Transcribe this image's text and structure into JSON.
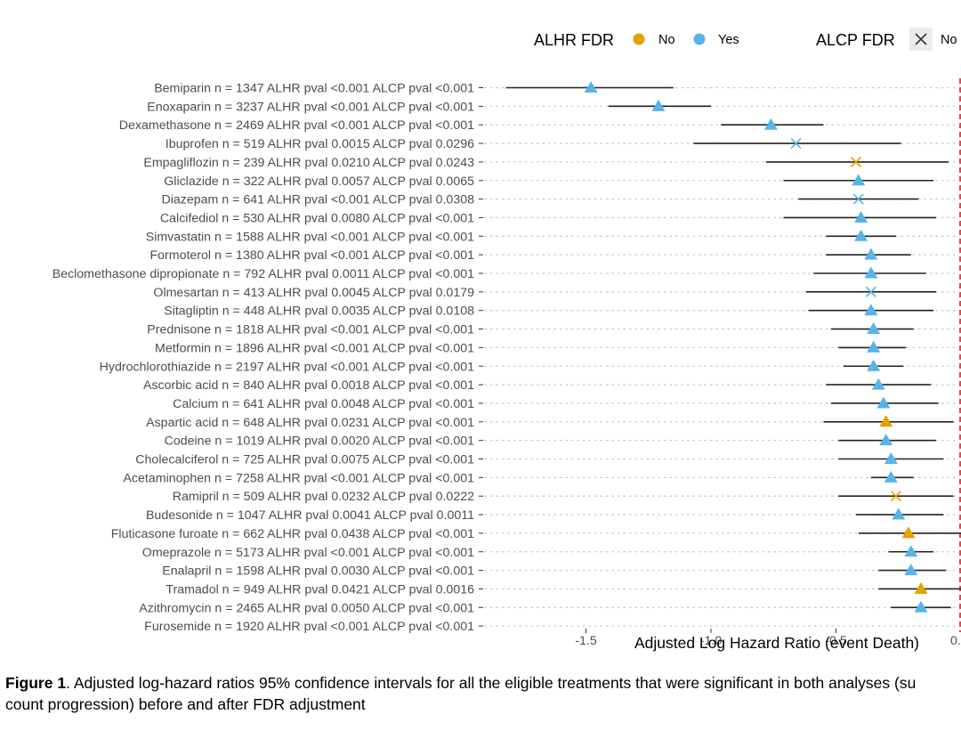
{
  "chart_data": {
    "type": "forest",
    "xlabel": "Adjusted Log Hazard Ratio (event Death)",
    "xlim": [
      -2.0,
      0.0
    ],
    "xticks": [
      -1.5,
      -1.0,
      -0.5
    ],
    "xtick_labels": [
      "-1.5",
      "-1.0",
      "-0.5"
    ],
    "xtick_cut_label": "0.",
    "reference_line": 0,
    "legend": {
      "position": "top",
      "color_title": "ALHR FDR",
      "color_entries": [
        {
          "label": "No",
          "color": "#E69F00"
        },
        {
          "label": "Yes",
          "color": "#56B4E9"
        }
      ],
      "shape_title": "ALCP FDR",
      "shape_entries": [
        {
          "label": "No",
          "shape": "cross"
        }
      ]
    },
    "rows": [
      {
        "drug": "Bemiparin",
        "n": "1347",
        "alhr_pval": "<0.001",
        "alcp_pval": "<0.001",
        "estimate": -1.48,
        "ci": [
          -1.82,
          -1.15
        ],
        "alhr_fdr": "Yes",
        "alcp_fdr": "Yes"
      },
      {
        "drug": "Enoxaparin",
        "n": "3237",
        "alhr_pval": "<0.001",
        "alcp_pval": "<0.001",
        "estimate": -1.21,
        "ci": [
          -1.41,
          -1.0
        ],
        "alhr_fdr": "Yes",
        "alcp_fdr": "Yes"
      },
      {
        "drug": "Dexamethasone",
        "n": "2469",
        "alhr_pval": "<0.001",
        "alcp_pval": "<0.001",
        "estimate": -0.76,
        "ci": [
          -0.96,
          -0.55
        ],
        "alhr_fdr": "Yes",
        "alcp_fdr": "Yes"
      },
      {
        "drug": "Ibuprofen",
        "n": "519",
        "alhr_pval": "0.0015",
        "alcp_pval": "0.0296",
        "estimate": -0.66,
        "ci": [
          -1.07,
          -0.24
        ],
        "alhr_fdr": "Yes",
        "alcp_fdr": "No"
      },
      {
        "drug": "Empagliflozin",
        "n": "239",
        "alhr_pval": "0.0210",
        "alcp_pval": "0.0243",
        "estimate": -0.42,
        "ci": [
          -0.78,
          -0.05
        ],
        "alhr_fdr": "No",
        "alcp_fdr": "No"
      },
      {
        "drug": "Gliclazide",
        "n": "322",
        "alhr_pval": "0.0057",
        "alcp_pval": "0.0065",
        "estimate": -0.41,
        "ci": [
          -0.71,
          -0.11
        ],
        "alhr_fdr": "Yes",
        "alcp_fdr": "Yes"
      },
      {
        "drug": "Diazepam",
        "n": "641",
        "alhr_pval": "<0.001",
        "alcp_pval": "0.0308",
        "estimate": -0.41,
        "ci": [
          -0.65,
          -0.17
        ],
        "alhr_fdr": "Yes",
        "alcp_fdr": "No"
      },
      {
        "drug": "Calcifediol",
        "n": "530",
        "alhr_pval": "0.0080",
        "alcp_pval": "<0.001",
        "estimate": -0.4,
        "ci": [
          -0.71,
          -0.1
        ],
        "alhr_fdr": "Yes",
        "alcp_fdr": "Yes"
      },
      {
        "drug": "Simvastatin",
        "n": "1588",
        "alhr_pval": "<0.001",
        "alcp_pval": "<0.001",
        "estimate": -0.4,
        "ci": [
          -0.54,
          -0.26
        ],
        "alhr_fdr": "Yes",
        "alcp_fdr": "Yes"
      },
      {
        "drug": "Formoterol",
        "n": "1380",
        "alhr_pval": "<0.001",
        "alcp_pval": "<0.001",
        "estimate": -0.36,
        "ci": [
          -0.54,
          -0.2
        ],
        "alhr_fdr": "Yes",
        "alcp_fdr": "Yes"
      },
      {
        "drug": "Beclomethasone dipropionate",
        "n": "792",
        "alhr_pval": "0.0011",
        "alcp_pval": "<0.001",
        "estimate": -0.36,
        "ci": [
          -0.59,
          -0.14
        ],
        "alhr_fdr": "Yes",
        "alcp_fdr": "Yes"
      },
      {
        "drug": "Olmesartan",
        "n": "413",
        "alhr_pval": "0.0045",
        "alcp_pval": "0.0179",
        "estimate": -0.36,
        "ci": [
          -0.62,
          -0.1
        ],
        "alhr_fdr": "Yes",
        "alcp_fdr": "No"
      },
      {
        "drug": "Sitagliptin",
        "n": "448",
        "alhr_pval": "0.0035",
        "alcp_pval": "0.0108",
        "estimate": -0.36,
        "ci": [
          -0.61,
          -0.11
        ],
        "alhr_fdr": "Yes",
        "alcp_fdr": "Yes"
      },
      {
        "drug": "Prednisone",
        "n": "1818",
        "alhr_pval": "<0.001",
        "alcp_pval": "<0.001",
        "estimate": -0.35,
        "ci": [
          -0.52,
          -0.19
        ],
        "alhr_fdr": "Yes",
        "alcp_fdr": "Yes"
      },
      {
        "drug": "Metformin",
        "n": "1896",
        "alhr_pval": "<0.001",
        "alcp_pval": "<0.001",
        "estimate": -0.35,
        "ci": [
          -0.49,
          -0.22
        ],
        "alhr_fdr": "Yes",
        "alcp_fdr": "Yes"
      },
      {
        "drug": "Hydrochlorothiazide",
        "n": "2197",
        "alhr_pval": "<0.001",
        "alcp_pval": "<0.001",
        "estimate": -0.35,
        "ci": [
          -0.47,
          -0.23
        ],
        "alhr_fdr": "Yes",
        "alcp_fdr": "Yes"
      },
      {
        "drug": "Ascorbic acid",
        "n": "840",
        "alhr_pval": "0.0018",
        "alcp_pval": "<0.001",
        "estimate": -0.33,
        "ci": [
          -0.54,
          -0.12
        ],
        "alhr_fdr": "Yes",
        "alcp_fdr": "Yes"
      },
      {
        "drug": "Calcium",
        "n": "641",
        "alhr_pval": "0.0048",
        "alcp_pval": "<0.001",
        "estimate": -0.31,
        "ci": [
          -0.52,
          -0.09
        ],
        "alhr_fdr": "Yes",
        "alcp_fdr": "Yes"
      },
      {
        "drug": "Aspartic acid",
        "n": "648",
        "alhr_pval": "0.0231",
        "alcp_pval": "<0.001",
        "estimate": -0.3,
        "ci": [
          -0.55,
          -0.03
        ],
        "alhr_fdr": "No",
        "alcp_fdr": "Yes"
      },
      {
        "drug": "Codeine",
        "n": "1019",
        "alhr_pval": "0.0020",
        "alcp_pval": "<0.001",
        "estimate": -0.3,
        "ci": [
          -0.49,
          -0.1
        ],
        "alhr_fdr": "Yes",
        "alcp_fdr": "Yes"
      },
      {
        "drug": "Cholecalciferol",
        "n": "725",
        "alhr_pval": "0.0075",
        "alcp_pval": "<0.001",
        "estimate": -0.28,
        "ci": [
          -0.49,
          -0.07
        ],
        "alhr_fdr": "Yes",
        "alcp_fdr": "Yes"
      },
      {
        "drug": "Acetaminophen",
        "n": "7258",
        "alhr_pval": "<0.001",
        "alcp_pval": "<0.001",
        "estimate": -0.28,
        "ci": [
          -0.36,
          -0.19
        ],
        "alhr_fdr": "Yes",
        "alcp_fdr": "Yes"
      },
      {
        "drug": "Ramipril",
        "n": "509",
        "alhr_pval": "0.0232",
        "alcp_pval": "0.0222",
        "estimate": -0.26,
        "ci": [
          -0.49,
          -0.03
        ],
        "alhr_fdr": "No",
        "alcp_fdr": "No"
      },
      {
        "drug": "Budesonide",
        "n": "1047",
        "alhr_pval": "0.0041",
        "alcp_pval": "0.0011",
        "estimate": -0.25,
        "ci": [
          -0.42,
          -0.07
        ],
        "alhr_fdr": "Yes",
        "alcp_fdr": "Yes"
      },
      {
        "drug": "Fluticasone furoate",
        "n": "662",
        "alhr_pval": "0.0438",
        "alcp_pval": "<0.001",
        "estimate": -0.21,
        "ci": [
          -0.41,
          0.0
        ],
        "alhr_fdr": "No",
        "alcp_fdr": "Yes"
      },
      {
        "drug": "Omeprazole",
        "n": "5173",
        "alhr_pval": "<0.001",
        "alcp_pval": "<0.001",
        "estimate": -0.2,
        "ci": [
          -0.29,
          -0.11
        ],
        "alhr_fdr": "Yes",
        "alcp_fdr": "Yes"
      },
      {
        "drug": "Enalapril",
        "n": "1598",
        "alhr_pval": "0.0030",
        "alcp_pval": "<0.001",
        "estimate": -0.2,
        "ci": [
          -0.33,
          -0.06
        ],
        "alhr_fdr": "Yes",
        "alcp_fdr": "Yes"
      },
      {
        "drug": "Tramadol",
        "n": "949",
        "alhr_pval": "0.0421",
        "alcp_pval": "0.0016",
        "estimate": -0.16,
        "ci": [
          -0.33,
          0.0
        ],
        "alhr_fdr": "No",
        "alcp_fdr": "Yes"
      },
      {
        "drug": "Azithromycin",
        "n": "2465",
        "alhr_pval": "0.0050",
        "alcp_pval": "<0.001",
        "estimate": -0.16,
        "ci": [
          -0.28,
          -0.04
        ],
        "alhr_fdr": "Yes",
        "alcp_fdr": "Yes"
      },
      {
        "drug": "Furosemide",
        "n": "1920",
        "alhr_pval": "<0.001",
        "alcp_pval": "<0.001",
        "estimate": null,
        "ci": null,
        "alhr_fdr": "",
        "alcp_fdr": ""
      }
    ]
  },
  "caption": {
    "label": "Figure 1",
    "line1": ". Adjusted log-hazard ratios 95% confidence intervals for all the eligible treatments that were significant in both analyses (su",
    "line2": "count progression) before and after FDR adjustment"
  }
}
